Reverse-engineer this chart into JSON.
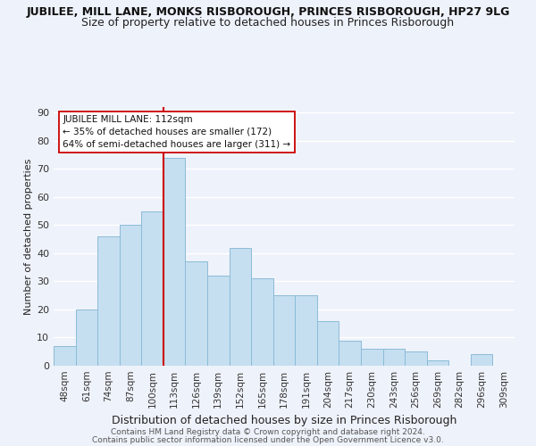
{
  "title": "JUBILEE, MILL LANE, MONKS RISBOROUGH, PRINCES RISBOROUGH, HP27 9LG",
  "subtitle": "Size of property relative to detached houses in Princes Risborough",
  "xlabel": "Distribution of detached houses by size in Princes Risborough",
  "ylabel": "Number of detached properties",
  "bar_labels": [
    "48sqm",
    "61sqm",
    "74sqm",
    "87sqm",
    "100sqm",
    "113sqm",
    "126sqm",
    "139sqm",
    "152sqm",
    "165sqm",
    "178sqm",
    "191sqm",
    "204sqm",
    "217sqm",
    "230sqm",
    "243sqm",
    "256sqm",
    "269sqm",
    "282sqm",
    "296sqm",
    "309sqm"
  ],
  "bar_values": [
    7,
    20,
    46,
    50,
    55,
    74,
    37,
    32,
    42,
    31,
    25,
    25,
    16,
    9,
    6,
    6,
    5,
    2,
    0,
    4,
    0
  ],
  "bar_color": "#c5dff0",
  "bar_edge_color": "#8bbbd8",
  "highlight_bar_index": 5,
  "highlight_line_color": "#cc0000",
  "ylim": [
    0,
    92
  ],
  "yticks": [
    0,
    10,
    20,
    30,
    40,
    50,
    60,
    70,
    80,
    90
  ],
  "annotation_line1": "JUBILEE MILL LANE: 112sqm",
  "annotation_line2": "← 35% of detached houses are smaller (172)",
  "annotation_line3": "64% of semi-detached houses are larger (311) →",
  "annotation_box_color": "#ffffff",
  "annotation_box_edge": "#cc0000",
  "footer1": "Contains HM Land Registry data © Crown copyright and database right 2024.",
  "footer2": "Contains public sector information licensed under the Open Government Licence v3.0.",
  "background_color": "#eef2fa",
  "grid_color": "#ffffff",
  "title_fontsize": 9,
  "subtitle_fontsize": 9,
  "ylabel_fontsize": 8,
  "xlabel_fontsize": 9,
  "tick_fontsize": 7.5,
  "footer_fontsize": 6.5
}
